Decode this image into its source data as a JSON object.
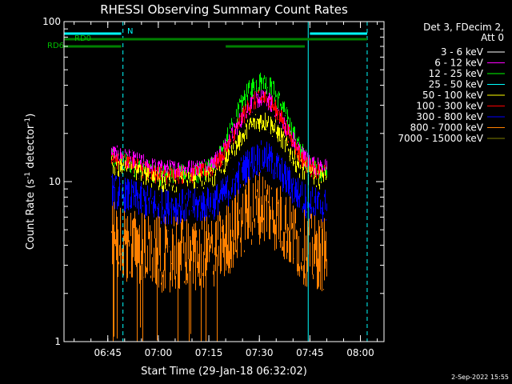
{
  "chart_data": {
    "type": "line",
    "title": "RHESSI Observing Summary Count Rates",
    "xlabel": "Start Time (29-Jan-18 06:32:02)",
    "ylabel_main": "Count Rate (s",
    "ylabel_sup": "-1",
    "ylabel_mid": " detector",
    "ylabel_sup2": "-1",
    "ylabel_end": ")",
    "yscale": "log",
    "ylim": [
      1,
      100
    ],
    "xlim_minutes": [
      0,
      95
    ],
    "x_ticks": [
      {
        "m": 13,
        "label": "06:45"
      },
      {
        "m": 28,
        "label": "07:00"
      },
      {
        "m": 43,
        "label": "07:15"
      },
      {
        "m": 58,
        "label": "07:30"
      },
      {
        "m": 73,
        "label": "07:45"
      },
      {
        "m": 88,
        "label": "08:00"
      }
    ],
    "y_ticks": [
      {
        "v": 1,
        "label": "1"
      },
      {
        "v": 10,
        "label": "10"
      },
      {
        "v": 100,
        "label": "100"
      }
    ],
    "legend_header": [
      "Det 3, FDecim 2,",
      "Att 0"
    ],
    "series": [
      {
        "name": "3 - 6 keV",
        "color": "#000000"
      },
      {
        "name": "6 - 12 keV",
        "color": "#ff00ff"
      },
      {
        "name": "12 - 25 keV",
        "color": "#00ff00"
      },
      {
        "name": "25 - 50 keV",
        "color": "#00ffff"
      },
      {
        "name": "50 - 100 keV",
        "color": "#ffff00"
      },
      {
        "name": "100 - 300 keV",
        "color": "#ff0000"
      },
      {
        "name": "300 - 800 keV",
        "color": "#0000ff"
      },
      {
        "name": "800 - 7000 keV",
        "color": "#ff8000"
      },
      {
        "name": "7000 - 15000 keV",
        "color": "#808000"
      }
    ],
    "drawn_series": [
      {
        "name": "12 - 25 keV",
        "color": "#00ff00",
        "start": 14,
        "end": 78,
        "peak": 42,
        "base": 11,
        "noise": 0.16
      },
      {
        "name": "6 - 12 keV",
        "color": "#ff00ff",
        "start": 14,
        "end": 78,
        "peak": 33,
        "base": 12,
        "noise": 0.14
      },
      {
        "name": "100 - 300 keV",
        "color": "#ff0000",
        "start": 14,
        "end": 78,
        "peak": 33,
        "base": 11,
        "noise": 0.14
      },
      {
        "name": "50 - 100 keV",
        "color": "#ffff00",
        "start": 14,
        "end": 78,
        "peak": 24,
        "base": 10,
        "noise": 0.16
      },
      {
        "name": "3 - 6 keV",
        "color": "#000000",
        "start": 14,
        "end": 78,
        "peak": 19,
        "base": 9,
        "noise": 0.18
      },
      {
        "name": "300 - 800 keV",
        "color": "#0000ff",
        "start": 14,
        "end": 78,
        "peak": 14,
        "base": 7,
        "noise": 0.26
      },
      {
        "name": "800 - 7000 keV",
        "color": "#ff8000",
        "start": 14,
        "end": 78,
        "peak": 7,
        "base": 3.5,
        "noise": 0.55
      }
    ],
    "attenuator_labels": {
      "top": "RD0",
      "bottom": "RD6",
      "night": "N"
    },
    "flag_bars": [
      {
        "row": "top",
        "color": "#00ffff",
        "from": 0,
        "to": 17
      },
      {
        "row": "top",
        "color": "#00ffff",
        "from": 73,
        "to": 90
      },
      {
        "row": "mid",
        "color": "#008000",
        "from": 0,
        "to": 73
      },
      {
        "row": "mid",
        "color": "#008000",
        "from": 73,
        "to": 90
      },
      {
        "row": "low",
        "color": "#008000",
        "from": 0,
        "to": 17
      },
      {
        "row": "low",
        "color": "#008000",
        "from": 48,
        "to": 71.5
      }
    ],
    "vlines": [
      {
        "m": 17.5,
        "color": "#00ffff",
        "dashed": true
      },
      {
        "m": 72.5,
        "color": "#00ffff",
        "dashed": false
      },
      {
        "m": 90,
        "color": "#00ffff",
        "dashed": true
      }
    ],
    "footer_date": "2-Sep-2022 15:55"
  }
}
